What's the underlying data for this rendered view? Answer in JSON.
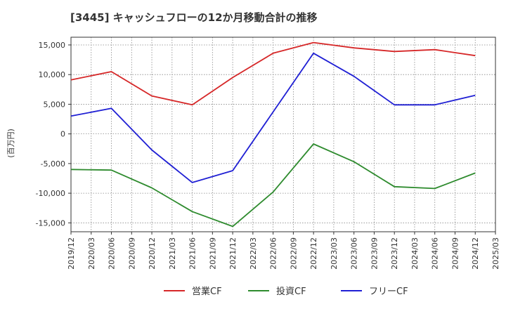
{
  "chart_data": {
    "type": "line",
    "title": "[3445]  キャッシュフローの12か月移動合計の推移",
    "ylabel": "(百万円)",
    "xlabel": "",
    "ylim": [
      -16500,
      16300
    ],
    "yticks": [
      15000,
      10000,
      5000,
      0,
      -5000,
      -10000,
      -15000
    ],
    "ytick_labels": [
      "15,000",
      "10,000",
      "5,000",
      "0",
      "-5,000",
      "-10,000",
      "-15,000"
    ],
    "x_categories": [
      "2019/12",
      "2020/03",
      "2020/06",
      "2020/09",
      "2020/12",
      "2021/03",
      "2021/06",
      "2021/09",
      "2021/12",
      "2022/03",
      "2022/06",
      "2022/09",
      "2022/12",
      "2023/03",
      "2023/06",
      "2023/09",
      "2023/12",
      "2024/03",
      "2024/06",
      "2024/09",
      "2024/12",
      "2025/03"
    ],
    "grid": true,
    "legend_position": "bottom-center",
    "series": [
      {
        "name": "営業CF",
        "color": "#d62728",
        "points": [
          [
            "2019/12",
            9100
          ],
          [
            "2020/06",
            10500
          ],
          [
            "2020/12",
            6400
          ],
          [
            "2021/06",
            4900
          ],
          [
            "2021/12",
            9500
          ],
          [
            "2022/06",
            13600
          ],
          [
            "2022/12",
            15400
          ],
          [
            "2023/06",
            14500
          ],
          [
            "2023/12",
            13900
          ],
          [
            "2024/06",
            14200
          ],
          [
            "2024/12",
            13200
          ]
        ]
      },
      {
        "name": "投資CF",
        "color": "#2e8b2e",
        "points": [
          [
            "2019/12",
            -6000
          ],
          [
            "2020/06",
            -6100
          ],
          [
            "2020/12",
            -9100
          ],
          [
            "2021/06",
            -13100
          ],
          [
            "2021/12",
            -15600
          ],
          [
            "2022/06",
            -9800
          ],
          [
            "2022/12",
            -1700
          ],
          [
            "2023/06",
            -4700
          ],
          [
            "2023/12",
            -8900
          ],
          [
            "2024/06",
            -9200
          ],
          [
            "2024/12",
            -6600
          ]
        ]
      },
      {
        "name": "フリーCF",
        "color": "#1f1fd4",
        "points": [
          [
            "2019/12",
            3000
          ],
          [
            "2020/06",
            4300
          ],
          [
            "2020/12",
            -2700
          ],
          [
            "2021/06",
            -8200
          ],
          [
            "2021/12",
            -6200
          ],
          [
            "2022/06",
            3700
          ],
          [
            "2022/12",
            13600
          ],
          [
            "2023/06",
            9700
          ],
          [
            "2023/12",
            4900
          ],
          [
            "2024/06",
            4900
          ],
          [
            "2024/12",
            6500
          ]
        ]
      }
    ]
  }
}
